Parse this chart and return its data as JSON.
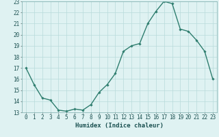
{
  "x": [
    0,
    1,
    2,
    3,
    4,
    5,
    6,
    7,
    8,
    9,
    10,
    11,
    12,
    13,
    14,
    15,
    16,
    17,
    18,
    19,
    20,
    21,
    22,
    23
  ],
  "y": [
    17.0,
    15.5,
    14.3,
    14.1,
    13.2,
    13.1,
    13.3,
    13.2,
    13.7,
    14.8,
    15.5,
    16.5,
    18.5,
    19.0,
    19.2,
    21.0,
    22.1,
    23.0,
    22.8,
    20.5,
    20.3,
    19.5,
    18.5,
    16.0
  ],
  "line_color": "#2e7d6e",
  "marker": "D",
  "marker_size": 1.8,
  "linewidth": 1.0,
  "bg_color": "#dff2f2",
  "grid_color": "#b8dada",
  "xlabel": "Humidex (Indice chaleur)",
  "xlim": [
    -0.5,
    23.5
  ],
  "ylim": [
    13,
    23
  ],
  "yticks": [
    13,
    14,
    15,
    16,
    17,
    18,
    19,
    20,
    21,
    22,
    23
  ],
  "xticks": [
    0,
    1,
    2,
    3,
    4,
    5,
    6,
    7,
    8,
    9,
    10,
    11,
    12,
    13,
    14,
    15,
    16,
    17,
    18,
    19,
    20,
    21,
    22,
    23
  ],
  "xtick_labels": [
    "0",
    "1",
    "2",
    "3",
    "4",
    "5",
    "6",
    "7",
    "8",
    "9",
    "10",
    "11",
    "12",
    "13",
    "14",
    "15",
    "16",
    "17",
    "18",
    "19",
    "20",
    "21",
    "22",
    "23"
  ],
  "ytick_labels": [
    "13",
    "14",
    "15",
    "16",
    "17",
    "18",
    "19",
    "20",
    "21",
    "22",
    "23"
  ],
  "tick_fontsize": 5.5,
  "xlabel_fontsize": 6.5
}
